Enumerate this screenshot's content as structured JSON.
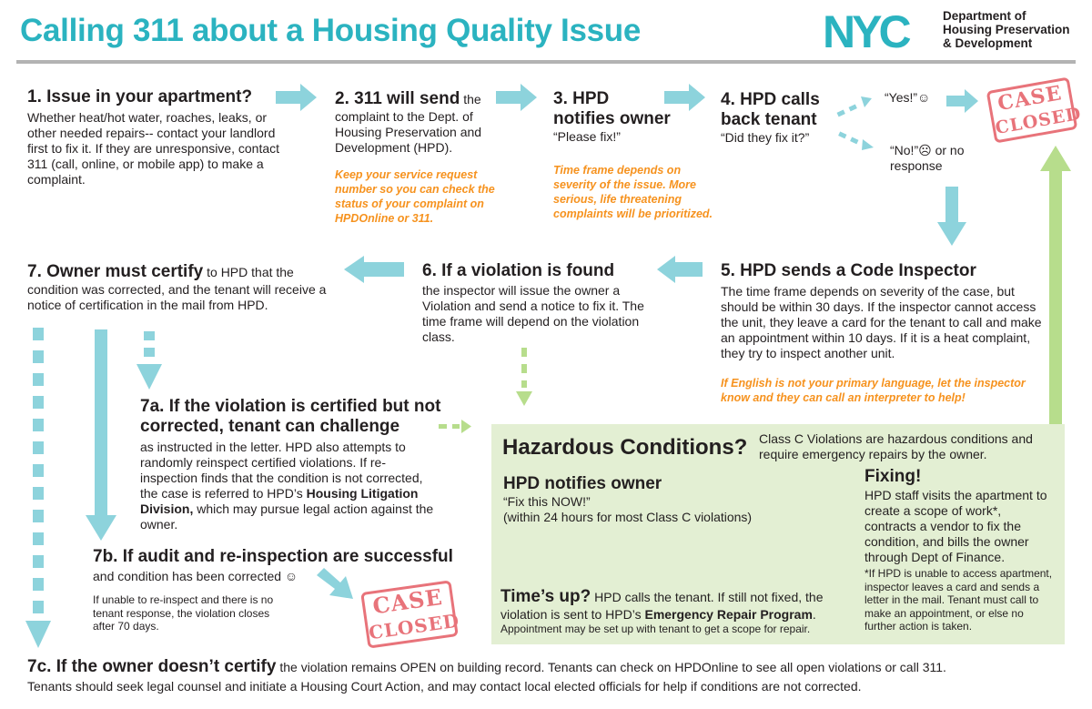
{
  "header": {
    "title": "Calling 311 about a Housing Quality Issue",
    "logo_text": "NYC",
    "dept_line1": "Department of",
    "dept_line2": "Housing Preservation",
    "dept_line3": "& Development"
  },
  "step1": {
    "heading": "1. Issue in your apartment?",
    "body": "Whether heat/hot water, roaches, leaks, or other needed repairs-- contact your landlord first to fix it. If they are unresponsive, contact 311 (call, online, or mobile app) to make a complaint."
  },
  "step2": {
    "heading": "2. 311 will send",
    "heading_rest": "the",
    "body": "complaint to the Dept. of Housing Preservation and Development (HPD).",
    "note": "Keep your service request number so you can check the status of your complaint on HPDOnline or 311."
  },
  "step3": {
    "heading_line1": "3. HPD",
    "heading_line2": "notifies owner",
    "quote": "“Please fix!”",
    "note": "Time frame depends on severity of the issue. More serious, life threatening complaints will be prioritized."
  },
  "step4": {
    "heading_line1": "4. HPD calls",
    "heading_line2": "back tenant",
    "quote": "“Did they fix it?”",
    "yes": "“Yes!”☺",
    "no_line1": "“No!”☹ or no",
    "no_line2": "response"
  },
  "stamps": {
    "line1": "CASE",
    "line2": "CLOSED"
  },
  "step5": {
    "heading": "5. HPD sends a Code Inspector",
    "body": "The time frame depends on severity of the case, but should be within 30 days. If the inspector cannot access the unit, they leave a card for the tenant to call and make an appointment within 10 days. If it is a heat complaint, they try to inspect another unit.",
    "note": "If English is not your primary language, let the inspector know and they can call an interpreter to help!"
  },
  "step6": {
    "heading": "6. If a violation is found",
    "body": "the inspector will issue the owner a Violation and send a notice to fix it. The time frame will depend on the violation class."
  },
  "step7": {
    "heading": "7. Owner must certify",
    "heading_rest": "to HPD that the",
    "body": "condition was corrected, and the tenant will receive a notice of certification in the mail from HPD."
  },
  "step7a": {
    "heading_line1": "7a. If the violation is certified but not",
    "heading_line2": "corrected, tenant can challenge",
    "body_before": "as instructed in the letter. HPD also attempts to randomly reinspect certified violations. If re-inspection finds that the condition is not corrected, the case is referred to HPD’s",
    "body_bold": "Housing Litigation Division,",
    "body_after": "which may pursue legal action against the owner."
  },
  "step7b": {
    "heading": "7b. If audit and re-inspection are successful",
    "body": "and condition has been corrected ☺",
    "small": "If unable to re-inspect and there is no tenant response, the violation closes after 70 days."
  },
  "step7c": {
    "heading": "7c. If the owner doesn’t certify",
    "body_first": "the violation remains OPEN on building record. Tenants can check on HPDOnline to see all open violations or call 311.",
    "body_second": "Tenants should seek legal counsel and initiate a Housing Court Action, and may contact local elected officials for help if conditions are not corrected."
  },
  "hazard": {
    "title": "Hazardous Conditions?",
    "intro": "Class C Violations are hazardous conditions and require emergency repairs by the owner.",
    "notify_heading": "HPD notifies owner",
    "notify_quote": "“Fix this NOW!”",
    "notify_time": "(within 24 hours for most Class C violations)",
    "timesup_heading": "Time’s up?",
    "timesup_body": "HPD calls the tenant. If still not fixed, the violation is sent to HPD’s",
    "timesup_bold": "Emergency Repair Program",
    "timesup_end": ".",
    "timesup_small": "Appointment may be set up with tenant to get a scope for repair.",
    "fixing_heading": "Fixing!",
    "fixing_body": "HPD staff visits the apartment to create a scope of work*, contracts a vendor to fix the condition, and bills the owner through Dept of Finance.",
    "fixing_small": "*If HPD is unable to access apartment, inspector leaves a card and sends a letter in the mail. Tenant must call to make an appointment, or else no further action is taken."
  },
  "colors": {
    "teal": "#2bb3c0",
    "arrow_teal": "#8dd3dc",
    "orange": "#f6921e",
    "green_box": "#e3efd3",
    "green_arrow": "#b7dd8c",
    "stamp_red": "#e8737a"
  }
}
